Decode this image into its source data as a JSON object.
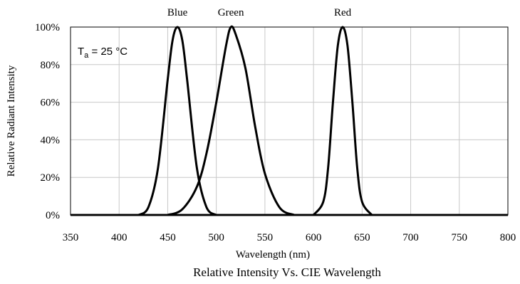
{
  "chart_data": {
    "type": "line",
    "title": "Relative Intensity Vs. CIE Wavelength",
    "xlabel": "Wavelength (nm)",
    "ylabel": "Relative Radiant Intensity",
    "xlim": [
      350,
      800
    ],
    "ylim": [
      0,
      100
    ],
    "x_ticks": [
      "350",
      "400",
      "450",
      "500",
      "550",
      "600",
      "650",
      "700",
      "750",
      "800"
    ],
    "y_ticks": [
      "0%",
      "20%",
      "40%",
      "60%",
      "80%",
      "100%"
    ],
    "grid": true,
    "annotation": {
      "main": "T",
      "sub": "a",
      "rest": " = 25 °C"
    },
    "series_labels": [
      "Blue",
      "Green",
      "Red"
    ],
    "series": [
      {
        "name": "Blue",
        "x": [
          420,
          430,
          440,
          450,
          455,
          460,
          465,
          470,
          480,
          490,
          500
        ],
        "y": [
          0,
          4,
          25,
          72,
          93,
          100,
          93,
          72,
          25,
          4,
          0
        ]
      },
      {
        "name": "Green",
        "x": [
          450,
          465,
          480,
          490,
          500,
          510,
          515,
          520,
          530,
          540,
          550,
          565,
          580
        ],
        "y": [
          0,
          3,
          15,
          33,
          60,
          90,
          100,
          96,
          78,
          47,
          22,
          4,
          0
        ]
      },
      {
        "name": "Red",
        "x": [
          600,
          610,
          615,
          620,
          625,
          630,
          635,
          640,
          645,
          650,
          660
        ],
        "y": [
          0,
          7,
          25,
          60,
          90,
          100,
          90,
          60,
          25,
          7,
          0
        ]
      }
    ],
    "line_color": "#000000"
  }
}
